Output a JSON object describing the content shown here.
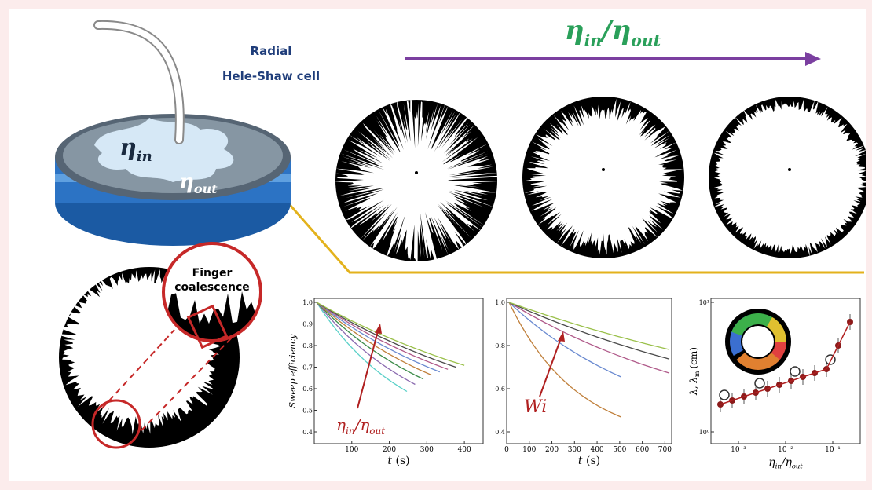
{
  "header": {
    "ratio": {
      "num": "η",
      "num_sub": "in",
      "sep": "/",
      "den": "η",
      "den_sub": "out"
    }
  },
  "cell": {
    "title_line1": "Radial",
    "title_line2": "Hele-Shaw cell",
    "inner": {
      "symbol": "η",
      "sub": "in"
    },
    "outer": {
      "symbol": "η",
      "sub": "out"
    }
  },
  "zoom": {
    "label_line1": "Finger",
    "label_line2": "coalescence"
  },
  "plots": [
    {
      "y_label": "Sweep efficiency",
      "y_ticks": [
        "1.0",
        "0.9",
        "0.8",
        "0.7",
        "0.6",
        "0.5",
        "0.4"
      ],
      "x_ticks": [
        "100",
        "200",
        "300",
        "400"
      ],
      "x_label": {
        "symbol": "t",
        "unit": "(s)"
      },
      "annotation": {
        "num": "η",
        "num_sub": "in",
        "sep": "/",
        "den": "η",
        "den_sub": "out"
      }
    },
    {
      "y_ticks": [
        "1.0",
        "0.8",
        "0.6",
        "0.4"
      ],
      "x_ticks": [
        "0",
        "100",
        "200",
        "300",
        "400",
        "500",
        "600",
        "700"
      ],
      "x_label": {
        "symbol": "t",
        "unit": "(s)"
      },
      "annotation": {
        "text": "Wi"
      }
    },
    {
      "y_label": {
        "main": "λ, λ",
        "sub": "m",
        "unit": "(cm)"
      },
      "y_ticks": [
        "10¹",
        "10⁰"
      ],
      "x_ticks": [
        "10⁻³",
        "10⁻²",
        "10⁻¹"
      ],
      "x_label": {
        "num": "η",
        "num_sub": "in",
        "sep": "/",
        "den": "η",
        "den_sub": "out"
      }
    }
  ]
}
